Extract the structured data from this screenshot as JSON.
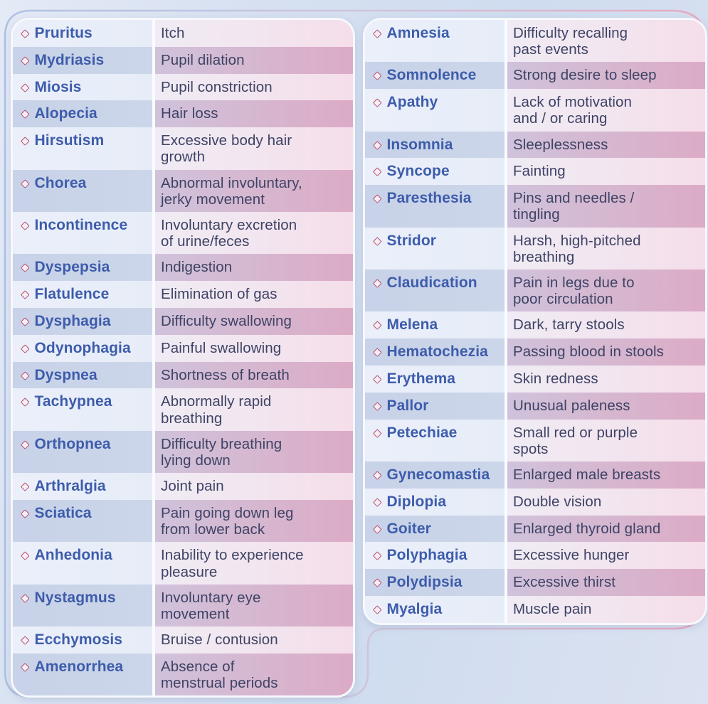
{
  "colors": {
    "term_blue": "#3d5cab",
    "definition_ink": "#3e4365",
    "bullet_outline_pink": "#b25073",
    "row_light_blue": "#eaeffa",
    "row_light_pink": "#f5dee9",
    "row_dark_blue": "#c9d3e8",
    "row_dark_pink": "#dcabc6",
    "divider_white": "#fafbfe",
    "outline_gradient_blue": "#aec1e3",
    "outline_gradient_pink": "#e8a9c1",
    "background_blue": "#d6e0f1"
  },
  "bullet_icon": "diamond-outline",
  "left_table": {
    "rows": [
      {
        "term": "Pruritus",
        "definition": "Itch"
      },
      {
        "term": "Mydriasis",
        "definition": "Pupil dilation"
      },
      {
        "term": "Miosis",
        "definition": "Pupil constriction"
      },
      {
        "term": "Alopecia",
        "definition": "Hair loss"
      },
      {
        "term": "Hirsutism",
        "definition": "Excessive body hair\ngrowth"
      },
      {
        "term": "Chorea",
        "definition": "Abnormal involuntary,\njerky movement"
      },
      {
        "term": "Incontinence",
        "definition": "Involuntary excretion\nof urine/feces"
      },
      {
        "term": "Dyspepsia",
        "definition": "Indigestion"
      },
      {
        "term": "Flatulence",
        "definition": "Elimination of gas"
      },
      {
        "term": "Dysphagia",
        "definition": "Difficulty swallowing"
      },
      {
        "term": "Odynophagia",
        "definition": "Painful swallowing"
      },
      {
        "term": "Dyspnea",
        "definition": "Shortness of breath"
      },
      {
        "term": "Tachypnea",
        "definition": "Abnormally rapid\nbreathing"
      },
      {
        "term": "Orthopnea",
        "definition": "Difficulty breathing\nlying down"
      },
      {
        "term": "Arthralgia",
        "definition": "Joint pain"
      },
      {
        "term": "Sciatica",
        "definition": "Pain going down leg\nfrom lower back"
      },
      {
        "term": "Anhedonia",
        "definition": "Inability to experience\npleasure"
      },
      {
        "term": "Nystagmus",
        "definition": "Involuntary eye\nmovement"
      },
      {
        "term": "Ecchymosis",
        "definition": "Bruise / contusion"
      },
      {
        "term": "Amenorrhea",
        "definition": "Absence of\nmenstrual periods"
      }
    ]
  },
  "right_table": {
    "rows": [
      {
        "term": "Amnesia",
        "definition": "Difficulty recalling\npast events"
      },
      {
        "term": "Somnolence",
        "definition": "Strong desire to sleep"
      },
      {
        "term": "Apathy",
        "definition": "Lack of motivation\nand / or caring"
      },
      {
        "term": "Insomnia",
        "definition": "Sleeplessness"
      },
      {
        "term": "Syncope",
        "definition": "Fainting"
      },
      {
        "term": "Paresthesia",
        "definition": "Pins and needles /\ntingling"
      },
      {
        "term": "Stridor",
        "definition": "Harsh, high-pitched\nbreathing"
      },
      {
        "term": "Claudication",
        "definition": "Pain in legs due to\npoor circulation"
      },
      {
        "term": "Melena",
        "definition": "Dark, tarry stools"
      },
      {
        "term": "Hematochezia",
        "definition": "Passing blood in stools"
      },
      {
        "term": "Erythema",
        "definition": "Skin redness"
      },
      {
        "term": "Pallor",
        "definition": "Unusual paleness"
      },
      {
        "term": "Petechiae",
        "definition": "Small red or purple\nspots"
      },
      {
        "term": "Gynecomastia",
        "definition": "Enlarged male breasts"
      },
      {
        "term": "Diplopia",
        "definition": "Double vision"
      },
      {
        "term": "Goiter",
        "definition": "Enlarged thyroid gland"
      },
      {
        "term": "Polyphagia",
        "definition": "Excessive hunger"
      },
      {
        "term": "Polydipsia",
        "definition": "Excessive thirst"
      },
      {
        "term": "Myalgia",
        "definition": "Muscle pain"
      }
    ]
  }
}
